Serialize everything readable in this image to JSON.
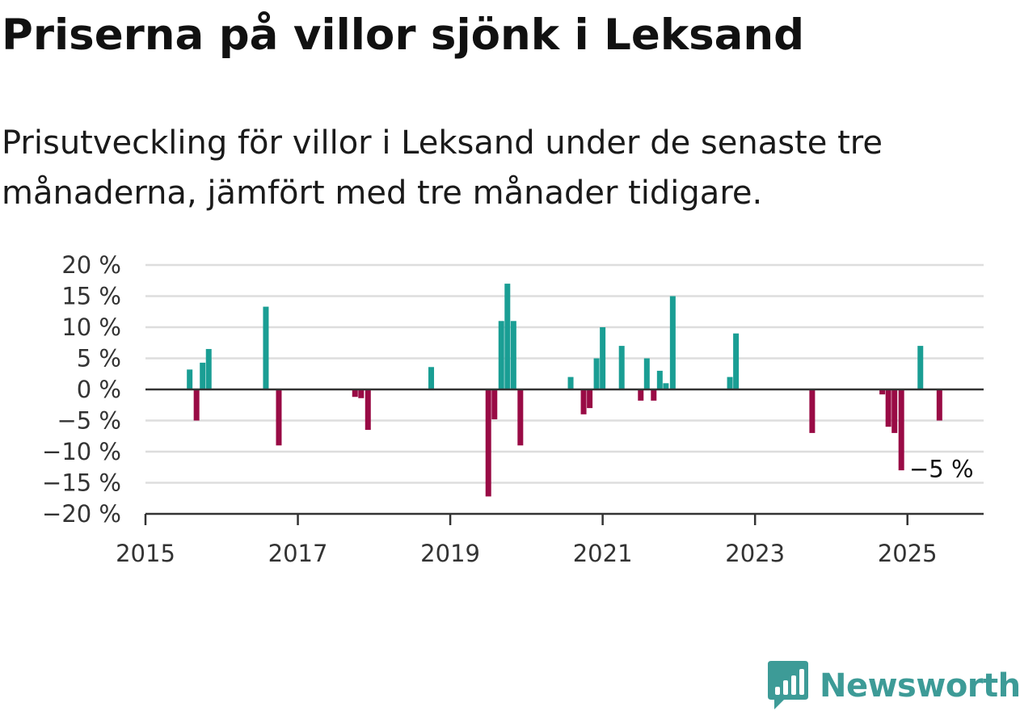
{
  "title": "Priserna på villor sjönk i Leksand",
  "subtitle": "Prisutveckling för villor i Leksand under de senaste tre månaderna, jämfört med tre månader tidigare.",
  "colors": {
    "positive": "#1a9e94",
    "negative": "#990b45",
    "grid": "#dddddd",
    "axis": "#333333",
    "logo": "#3d9b97"
  },
  "logo": {
    "text": "Newsworthy",
    "icon": "bar-chart-speech-bubble-icon"
  },
  "chart_data": {
    "type": "bar",
    "ylim": [
      -20,
      20
    ],
    "yticks": [
      20,
      15,
      10,
      5,
      0,
      -5,
      -10,
      -15,
      -20
    ],
    "ytick_labels": [
      "20 %",
      "15 %",
      "10 %",
      "5 %",
      "0 %",
      "−5 %",
      "−10 %",
      "−15 %",
      "−20 %"
    ],
    "xlim": [
      2015,
      2026
    ],
    "xticks": [
      2015,
      2017,
      2019,
      2021,
      2023,
      2025
    ],
    "xtick_labels": [
      "2015",
      "2017",
      "2019",
      "2021",
      "2023",
      "2025"
    ],
    "grid": true,
    "annotation": {
      "text": "−5 %",
      "x": 2025.42,
      "y": -5
    },
    "series": [
      {
        "x": [
          2015.58,
          2015.67,
          2015.75,
          2015.83,
          2016.58,
          2016.75,
          2017.75,
          2017.83,
          2017.92,
          2018.75,
          2019.5,
          2019.58,
          2019.67,
          2019.75,
          2019.83,
          2019.92,
          2020.58,
          2020.75,
          2020.83,
          2020.92,
          2021.0,
          2021.25,
          2021.5,
          2021.58,
          2021.67,
          2021.75,
          2021.83,
          2021.92,
          2022.67,
          2022.75,
          2023.75,
          2024.67,
          2024.75,
          2024.83,
          2024.92,
          2025.17,
          2025.42
        ],
        "values": [
          3.2,
          -5,
          4.3,
          6.5,
          13.3,
          -9,
          -1.2,
          -1.4,
          -6.5,
          3.6,
          -17.2,
          -4.8,
          11,
          17,
          11,
          -9,
          2,
          -4,
          -3,
          5,
          10,
          7,
          -1.8,
          5,
          -1.8,
          3,
          1,
          15,
          2,
          9,
          -7,
          -0.8,
          -6,
          -7,
          -13,
          7,
          -5
        ]
      }
    ]
  }
}
